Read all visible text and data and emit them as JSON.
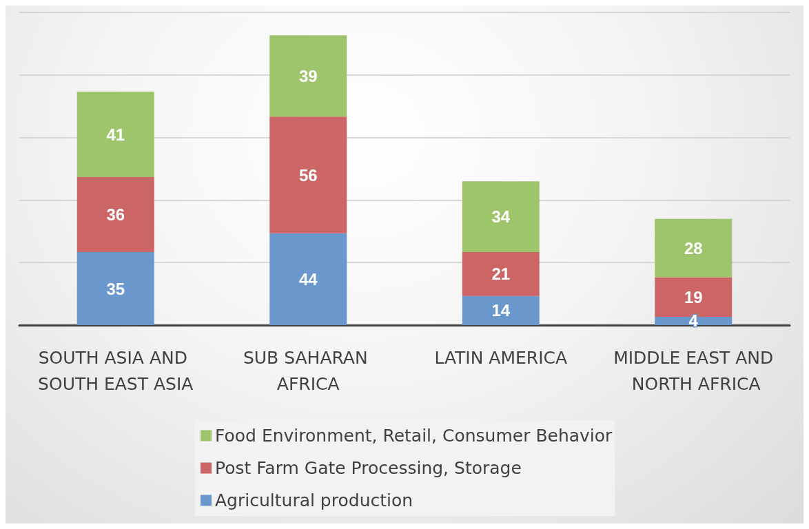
{
  "chart_data": {
    "type": "bar",
    "stacked": true,
    "categories": [
      "SOUTH ASIA AND SOUTH EAST ASIA",
      "SUB SAHARAN AFRICA",
      "LATIN AMERICA",
      "MIDDLE EAST AND NORTH AFRICA"
    ],
    "series": [
      {
        "name": "Agricultural production",
        "color": "#6a98cc",
        "values": [
          35,
          44,
          14,
          4
        ]
      },
      {
        "name": "Post Farm Gate Processing, Storage",
        "color": "#cc6666",
        "values": [
          36,
          56,
          21,
          19
        ]
      },
      {
        "name": "Food Environment, Retail, Consumer Behavior",
        "color": "#9ec46c",
        "values": [
          41,
          39,
          34,
          28
        ]
      }
    ],
    "tick_labels": "x",
    "grid": "y",
    "data_labels": true,
    "legend": "bottom"
  }
}
